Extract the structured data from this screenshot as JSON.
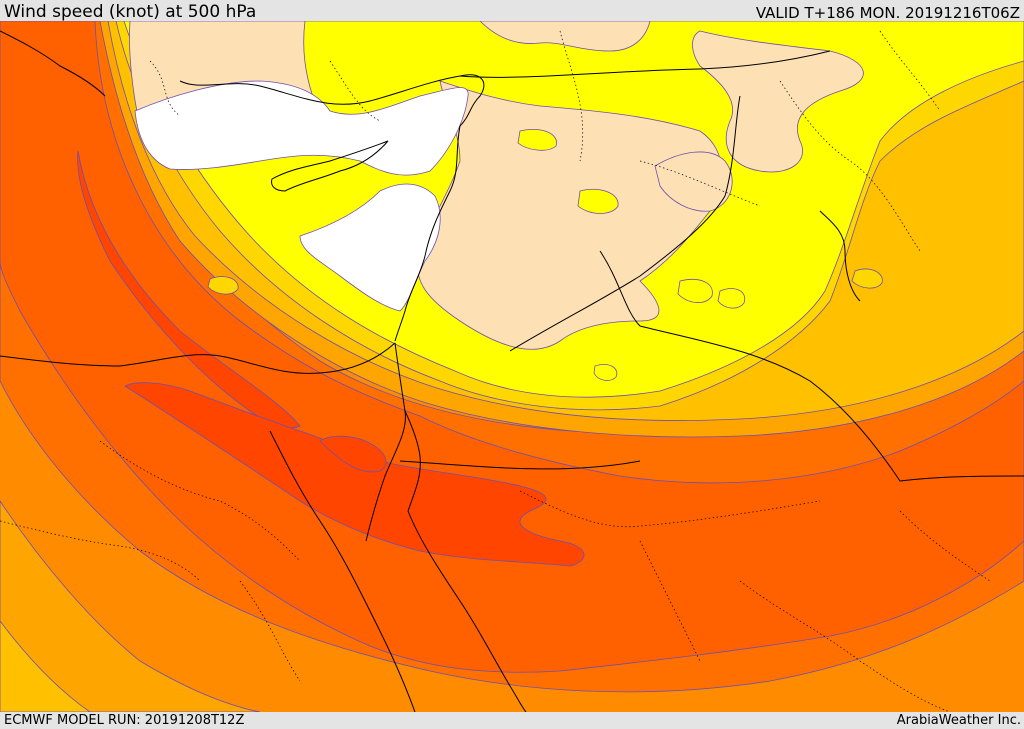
{
  "header": {
    "title": "Wind speed (knot) at 500 hPa",
    "valid": "VALID T+186 MON. 20191216T06Z"
  },
  "footer": {
    "model_run": "ECMWF MODEL RUN: 20191208T12Z",
    "credit": "ArabiaWeather Inc."
  },
  "colors": {
    "band_white": "#ffffff",
    "band_beige": "#fde0b4",
    "band_yellow": "#ffff00",
    "band_gold": "#ffd700",
    "band_amber": "#ffc000",
    "band_orange_light": "#ffa500",
    "band_orange": "#ff8c00",
    "band_orange_dark": "#ff7000",
    "band_red_orange": "#ff6000",
    "band_red": "#ff4500",
    "contour_line": "#6e4fb0",
    "coastline": "#000000",
    "background": "#e4e4e4"
  }
}
